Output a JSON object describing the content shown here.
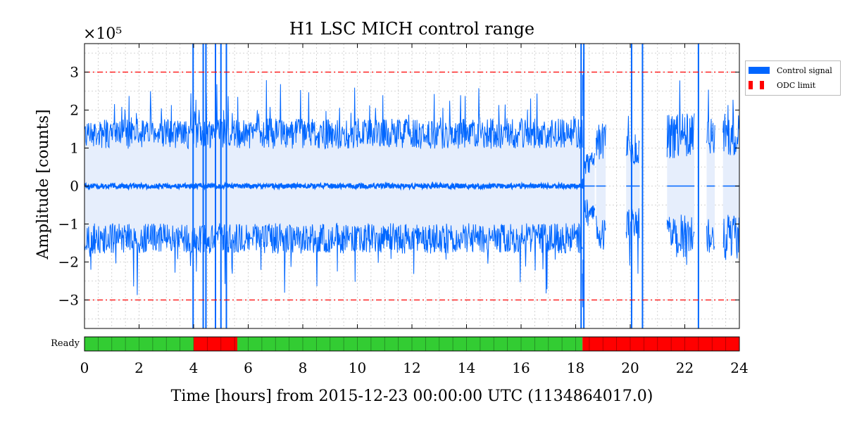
{
  "chart_data": {
    "type": "line",
    "title": "H1 LSC MICH control range",
    "xlabel": "Time [hours] from 2015-12-23 00:00:00 UTC (1134864017.0)",
    "ylabel": "Amplitude [counts]",
    "y_multiplier": "×10⁵",
    "xlim": [
      0,
      24
    ],
    "ylim": [
      -3.75,
      3.75
    ],
    "y_unit_scale": 100000,
    "x_ticks": [
      "0",
      "2",
      "4",
      "6",
      "8",
      "10",
      "12",
      "14",
      "16",
      "18",
      "20",
      "22",
      "24"
    ],
    "y_ticks": [
      "−3",
      "−2",
      "−1",
      "0",
      "1",
      "2",
      "3"
    ],
    "y_tick_values": [
      -3,
      -2,
      -1,
      0,
      1,
      2,
      3
    ],
    "grid": true,
    "legend_position": "outside-top-right",
    "series": [
      {
        "name": "Control signal",
        "color": "#0066ff",
        "band_fill": "#e6eefc",
        "segments": [
          {
            "x0": 0,
            "x1": 18.25,
            "amp": 1.3,
            "noise": 0.4,
            "mean_noise": 0.06
          },
          {
            "x0": 18.25,
            "x1": 18.3,
            "amp": 2.4,
            "noise": 0.8,
            "mean_noise": 0.2
          },
          {
            "x0": 18.3,
            "x1": 18.7,
            "amp": 0.55,
            "noise": 0.3,
            "mean_noise": 0
          },
          {
            "x0": 18.75,
            "x1": 19.1,
            "amp": 1.1,
            "noise": 0.5,
            "mean_noise": 0
          },
          {
            "x0": 19.85,
            "x1": 20.35,
            "amp": 0.9,
            "noise": 0.4,
            "mean_noise": 0
          },
          {
            "x0": 21.35,
            "x1": 22.35,
            "amp": 1.2,
            "noise": 0.6,
            "mean_noise": 0
          },
          {
            "x0": 22.8,
            "x1": 23.1,
            "amp": 1.2,
            "noise": 0.5,
            "mean_noise": 0
          },
          {
            "x0": 23.4,
            "x1": 24,
            "amp": 1.2,
            "noise": 0.6,
            "mean_noise": 0
          }
        ],
        "spikes": [
          3.98,
          4.35,
          4.45,
          4.8,
          5.0,
          5.2,
          18.2,
          18.3,
          20.05,
          20.45,
          22.5
        ]
      },
      {
        "name": "ODC limit",
        "color": "#ff0000",
        "values": [
          3,
          -3
        ]
      }
    ],
    "state_bar": {
      "label": "Ready",
      "green": "#33cc33",
      "red": "#ff0000",
      "segments": [
        {
          "x0": 0,
          "x1": 4.0,
          "state": "green"
        },
        {
          "x0": 4.0,
          "x1": 5.6,
          "state": "red"
        },
        {
          "x0": 5.6,
          "x1": 18.25,
          "state": "green"
        },
        {
          "x0": 18.25,
          "x1": 24,
          "state": "red"
        }
      ]
    }
  },
  "legend": {
    "items": [
      {
        "label": "Control signal",
        "color": "#0066ff"
      },
      {
        "label": "ODC limit",
        "color": "#ff0000"
      }
    ]
  }
}
